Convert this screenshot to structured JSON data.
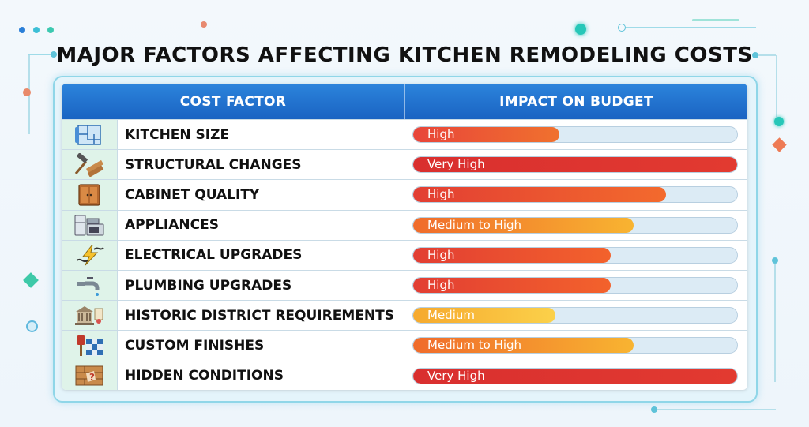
{
  "title": "MAJOR FACTORS AFFECTING KITCHEN REMODELING COSTS",
  "table": {
    "headers": [
      "COST FACTOR",
      "IMPACT ON BUDGET"
    ],
    "rows": [
      {
        "icon": "floor-plan-icon",
        "factor": "KITCHEN SIZE",
        "impact": "High",
        "level": 0.45,
        "colors": [
          "#e8453a",
          "#f0712e"
        ]
      },
      {
        "icon": "hammer-wood-icon",
        "factor": "STRUCTURAL CHANGES",
        "impact": "Very High",
        "level": 1.0,
        "colors": [
          "#d92f2f",
          "#e23a30"
        ]
      },
      {
        "icon": "cabinet-icon",
        "factor": "CABINET QUALITY",
        "impact": "High",
        "level": 0.78,
        "colors": [
          "#e23e33",
          "#f36a2d"
        ]
      },
      {
        "icon": "appliances-icon",
        "factor": "APPLIANCES",
        "impact": "Medium to High",
        "level": 0.68,
        "colors": [
          "#f06b2b",
          "#f8b431"
        ]
      },
      {
        "icon": "lightning-icon",
        "factor": "ELECTRICAL UPGRADES",
        "impact": "High",
        "level": 0.61,
        "colors": [
          "#e23e33",
          "#f3622c"
        ]
      },
      {
        "icon": "faucet-icon",
        "factor": "PLUMBING UPGRADES",
        "impact": "High",
        "level": 0.61,
        "colors": [
          "#e23e33",
          "#f3622c"
        ]
      },
      {
        "icon": "historic-building-icon",
        "factor": "HISTORIC DISTRICT REQUIREMENTS",
        "impact": "Medium",
        "level": 0.44,
        "colors": [
          "#f6a92e",
          "#fbd14a"
        ]
      },
      {
        "icon": "paint-tile-icon",
        "factor": "CUSTOM FINISHES",
        "impact": "Medium to High",
        "level": 0.68,
        "colors": [
          "#f06b2b",
          "#f8b431"
        ]
      },
      {
        "icon": "hidden-wall-icon",
        "factor": "HIDDEN CONDITIONS",
        "impact": "Very High",
        "level": 1.0,
        "colors": [
          "#d92f2f",
          "#e23a30"
        ]
      }
    ]
  }
}
